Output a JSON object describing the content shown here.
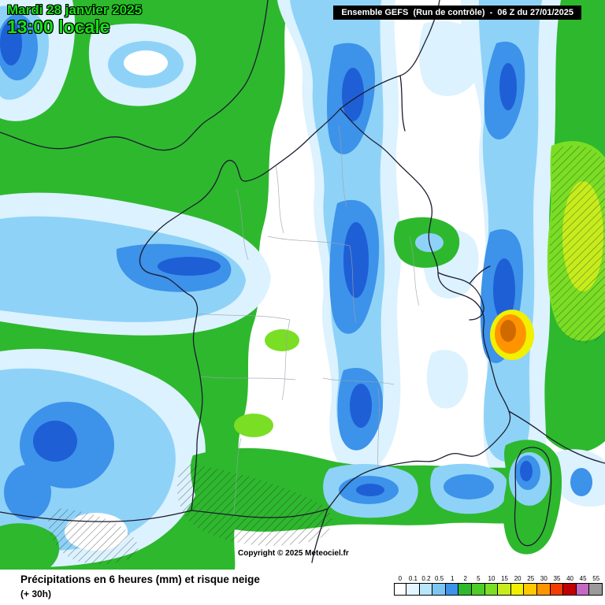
{
  "header": {
    "date_line1": "Mardi 28 janvier 2025",
    "time_line": "13:00 locale",
    "model_info": "Ensemble GEFS  (Run de contrôle)  -  06 Z du 27/01/2025"
  },
  "map": {
    "copyright": "Copyright © 2025 Meteociel.fr",
    "region": "France",
    "hatch_meaning": "risque neige"
  },
  "footer": {
    "caption": "Précipitations en 6 heures (mm) et risque neige",
    "lead_time": "(+ 30h)",
    "legend": [
      {
        "value": "0",
        "color": "#ffffff"
      },
      {
        "value": "0.1",
        "color": "#e4f6ff"
      },
      {
        "value": "0.2",
        "color": "#b8e6fb"
      },
      {
        "value": "0.5",
        "color": "#7cc6f4"
      },
      {
        "value": "1",
        "color": "#3d92ea"
      },
      {
        "value": "2",
        "color": "#2eb82e"
      },
      {
        "value": "5",
        "color": "#4ecc28"
      },
      {
        "value": "10",
        "color": "#7ade24"
      },
      {
        "value": "15",
        "color": "#c6ec1c"
      },
      {
        "value": "20",
        "color": "#f0f000"
      },
      {
        "value": "25",
        "color": "#ffc800"
      },
      {
        "value": "30",
        "color": "#ff9400"
      },
      {
        "value": "35",
        "color": "#f23c00"
      },
      {
        "value": "40",
        "color": "#c00000"
      },
      {
        "value": "45",
        "color": "#c468c4"
      },
      {
        "value": "55",
        "color": "#9a9a9a"
      }
    ]
  },
  "colors": {
    "c1": "#dcf2fe",
    "c2": "#8fd2f8",
    "b1": "#3d92ea",
    "b2": "#1e5fd6",
    "g1": "#2eb82e",
    "g2": "#7ade24",
    "g3": "#c6ec1c",
    "yel": "#f0f000",
    "org": "#ff9400",
    "org2": "#d06a00",
    "bdr": "#1c1c30",
    "dept": "#9aa2ac",
    "date-green": "#17e017",
    "header-bg": "#000000",
    "header-fg": "#ffffff"
  }
}
